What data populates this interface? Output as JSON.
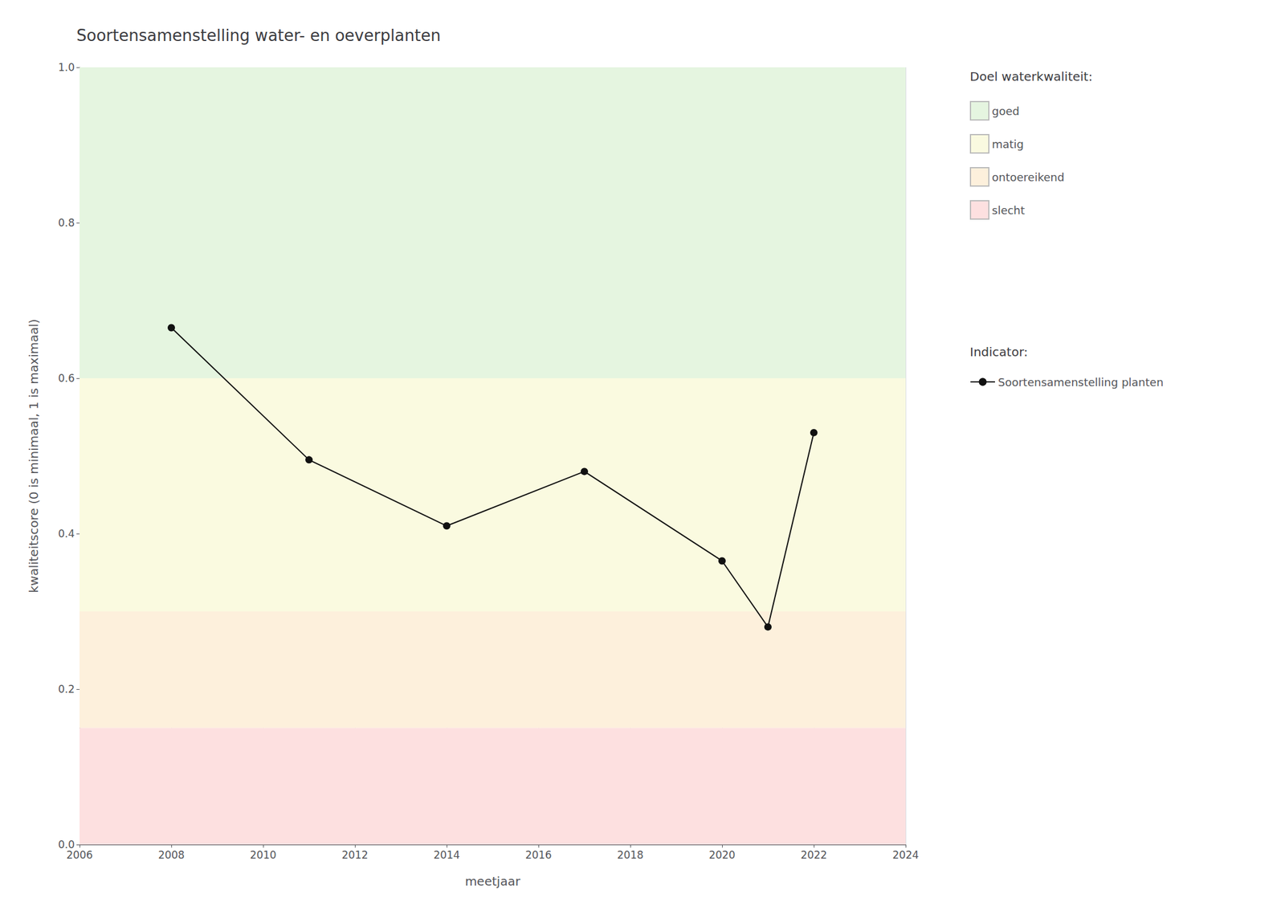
{
  "chart_data": {
    "type": "line",
    "title": "Soortensamenstelling water- en oeverplanten",
    "xlabel": "meetjaar",
    "ylabel": "kwaliteitscore (0 is minimaal, 1 is maximaal)",
    "x": [
      2008,
      2011,
      2014,
      2017,
      2020,
      2021,
      2022
    ],
    "series": [
      {
        "name": "Soortensamenstelling planten",
        "color": "#111111",
        "marker": "circle",
        "values": [
          0.665,
          0.495,
          0.41,
          0.48,
          0.365,
          0.28,
          0.53
        ]
      }
    ],
    "xlim": [
      2006,
      2024
    ],
    "ylim": [
      0.0,
      1.0
    ],
    "xticks": [
      2006,
      2008,
      2010,
      2012,
      2014,
      2016,
      2018,
      2020,
      2022,
      2024
    ],
    "yticks": [
      {
        "value": 0,
        "label": "0.0"
      },
      0.2,
      0.4,
      0.6,
      0.8,
      {
        "value": 1,
        "label": "1.0"
      }
    ],
    "grid": true,
    "legend": "right",
    "zones_title": "Doel waterkwaliteit:",
    "series_title": "Indicator:",
    "zones": [
      {
        "ymin": 0.6,
        "ymax": 1.0,
        "color": "#e5f5e0",
        "label": "goed"
      },
      {
        "ymin": 0.3,
        "ymax": 0.6,
        "color": "#fafae0",
        "label": "matig"
      },
      {
        "ymin": 0.15,
        "ymax": 0.3,
        "color": "#fdf0dc",
        "label": "ontoereikend"
      },
      {
        "ymin": 0.0,
        "ymax": 0.15,
        "color": "#fde0e0",
        "label": "slecht"
      }
    ]
  }
}
